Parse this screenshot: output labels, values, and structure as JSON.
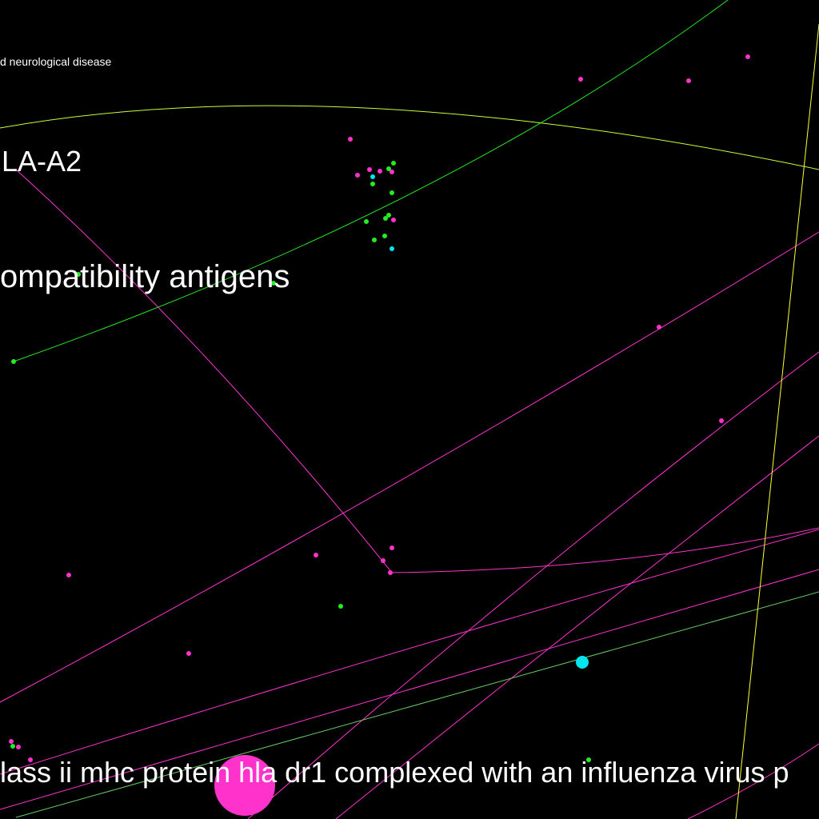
{
  "graph": {
    "background": "#000000",
    "colors": {
      "pink": "#ff33cc",
      "green": "#22ee22",
      "cyan": "#00e5ee",
      "yellow": "#ffff33",
      "lime": "#88ff33",
      "label": "#ffffff"
    },
    "labels": {
      "top_small": "d neurological disease",
      "hla_a2": "LA-A2",
      "antigens": "ompatibility antigens",
      "bottom": "lass ii mhc protein hla dr1 complexed with an influenza virus p"
    }
  }
}
